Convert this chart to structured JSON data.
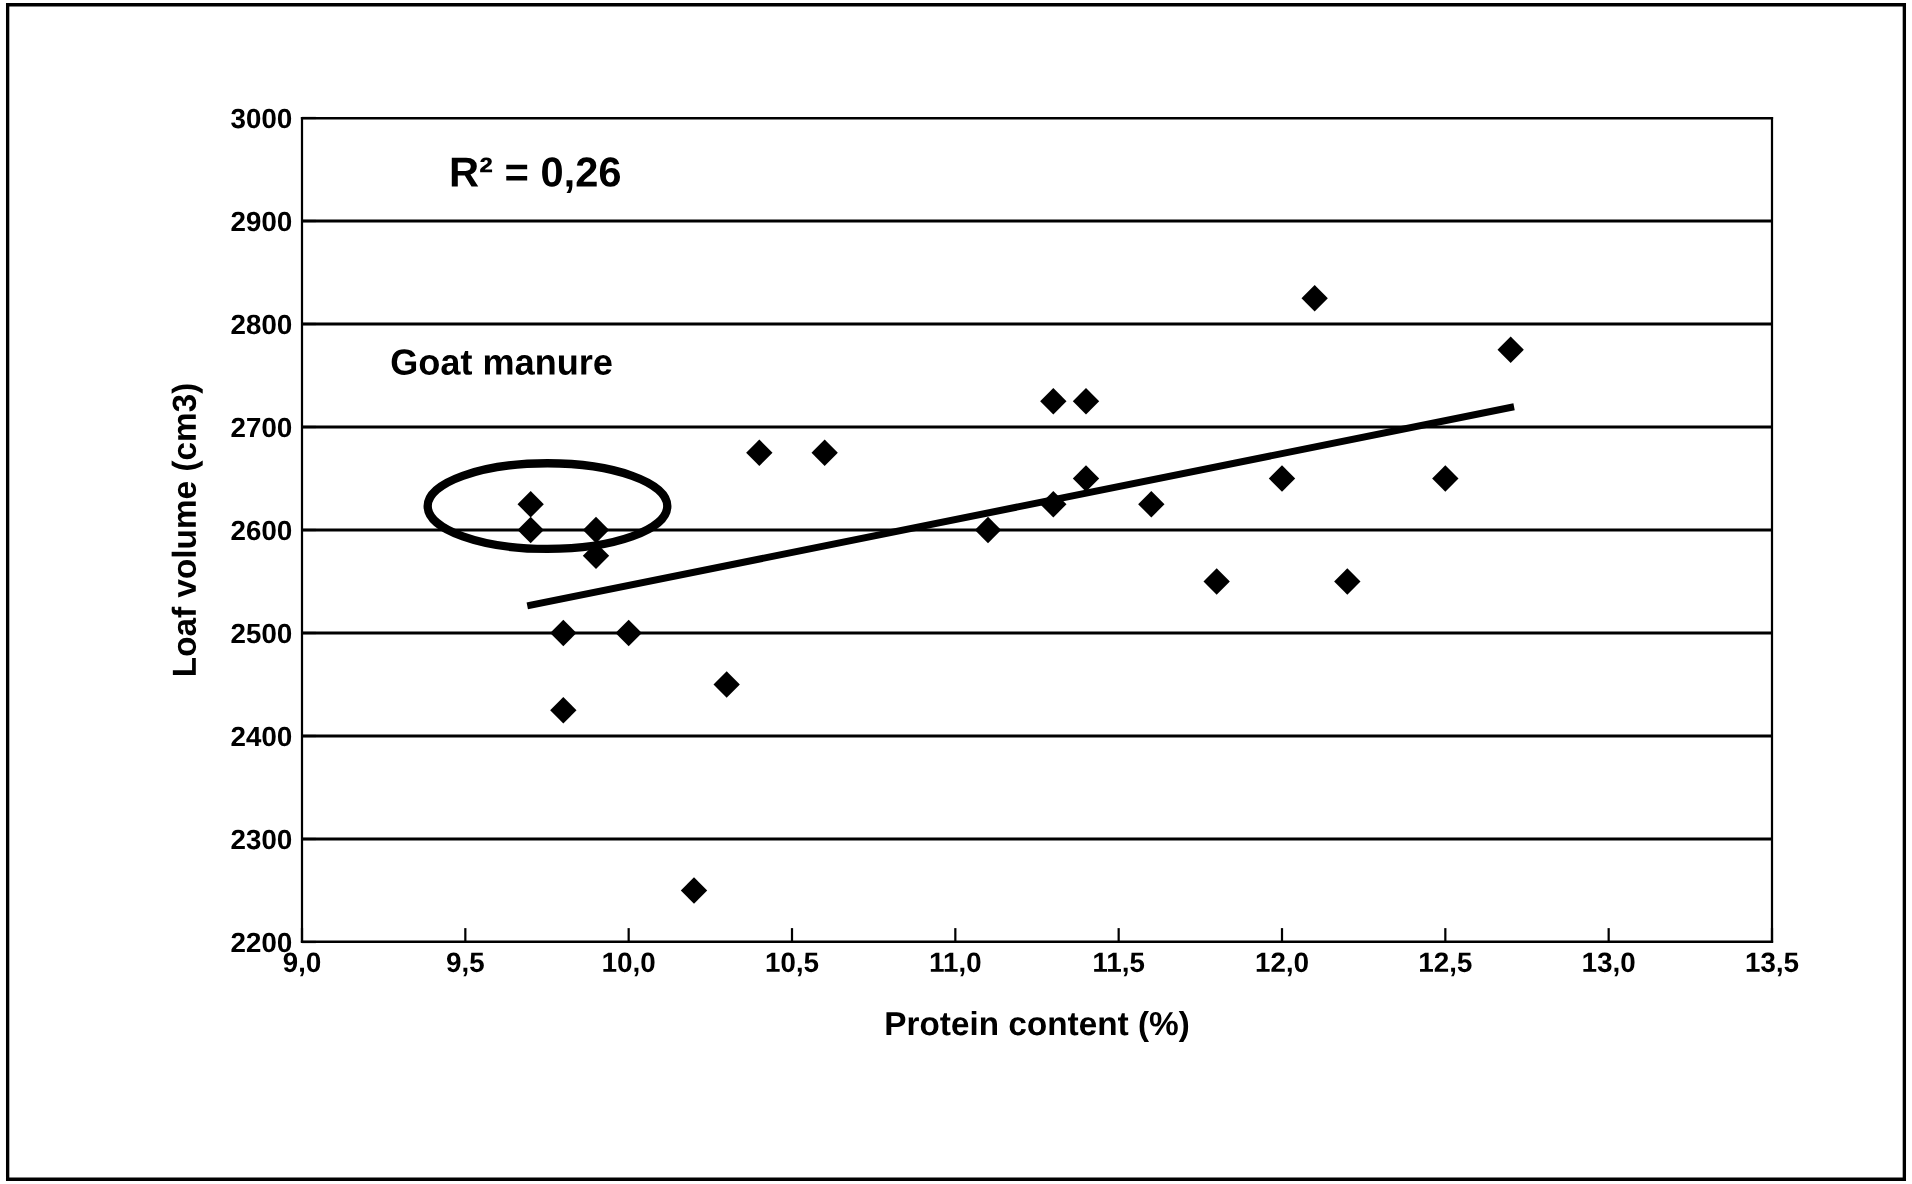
{
  "chart_data": {
    "type": "scatter",
    "xlabel": "Protein content (%)",
    "ylabel": "Loaf volume (cm3)",
    "annotations": [
      "R² = 0,26",
      "Goat manure"
    ],
    "series": [
      {
        "color": "#000000",
        "marker": "diamond",
        "x": [
          9.7,
          9.7,
          9.8,
          9.8,
          9.9,
          9.9,
          10.0,
          10.2,
          10.3,
          10.4,
          10.6,
          11.1,
          11.3,
          11.3,
          11.4,
          11.4,
          11.6,
          11.8,
          12.0,
          12.1,
          12.2,
          12.5,
          12.7
        ],
        "values": [
          2625,
          2600,
          2500,
          2425,
          2600,
          2575,
          2500,
          2250,
          2450,
          2675,
          2675,
          2600,
          2725,
          2625,
          2725,
          2650,
          2625,
          2550,
          2650,
          2825,
          2550,
          2650,
          2775
        ]
      },
      {
        "type": "line",
        "color": "#000000",
        "line_style": "solid",
        "x": [
          9.7,
          12.7
        ],
        "values": [
          2527,
          2719
        ]
      }
    ],
    "xlim": [
      9.0,
      13.5
    ],
    "xticks": [
      {
        "value": 9.0,
        "label": "9,0"
      },
      {
        "value": 9.5,
        "label": "9,5"
      },
      {
        "value": 10.0,
        "label": "10,0"
      },
      {
        "value": 10.5,
        "label": "10,5"
      },
      {
        "value": 11.0,
        "label": "11,0"
      },
      {
        "value": 11.5,
        "label": "11,5"
      },
      {
        "value": 12.0,
        "label": "12,0"
      },
      {
        "value": 12.5,
        "label": "12,5"
      },
      {
        "value": 13.0,
        "label": "13,0"
      },
      {
        "value": 13.5,
        "label": "13,5"
      }
    ],
    "ylim": [
      2200,
      3000
    ],
    "yticks": [
      2200,
      2300,
      2400,
      2500,
      2600,
      2700,
      2800,
      2900,
      3000
    ],
    "grid": "y"
  }
}
